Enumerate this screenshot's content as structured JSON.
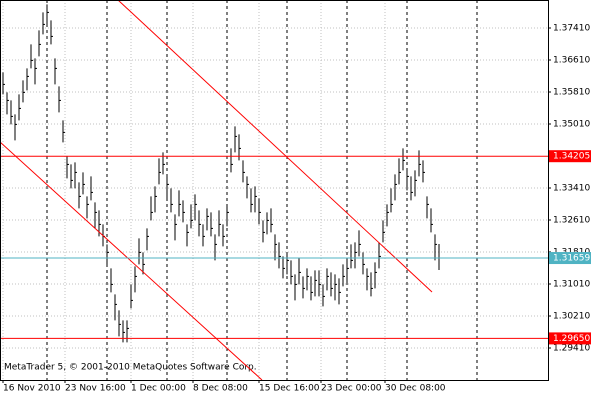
{
  "chart_data": {
    "type": "ohlc",
    "copyright": "MetaTrader 5, © 2001-2010 MetaQuotes Software Corp.",
    "color": "#000000",
    "grid": true,
    "xlim": [
      -0.75,
      136.25
    ],
    "ylim": [
      1.2861,
      1.3811
    ],
    "xticks": [
      {
        "value": 0,
        "label": "16 Nov 2010"
      },
      {
        "value": 15.5,
        "label": "23 Nov 16:00"
      },
      {
        "value": 32,
        "label": "1 Dec 00:00"
      },
      {
        "value": 47.5,
        "label": "8 Dec 08:00"
      },
      {
        "value": 64,
        "label": "15 Dec 16:00"
      },
      {
        "value": 79.5,
        "label": "23 Dec 00:00"
      },
      {
        "value": 95.5,
        "label": "30 Dec 08:00"
      }
    ],
    "yticks": [
      {
        "value": 1.3741,
        "label": "1.37410"
      },
      {
        "value": 1.3661,
        "label": "1.36610"
      },
      {
        "value": 1.3581,
        "label": "1.35810"
      },
      {
        "value": 1.3501,
        "label": "1.35010"
      },
      {
        "value": 1.3341,
        "label": "1.33410"
      },
      {
        "value": 1.3261,
        "label": "1.32610"
      },
      {
        "value": 1.3181,
        "label": "1.31810"
      },
      {
        "value": 1.3101,
        "label": "1.31010"
      },
      {
        "value": 1.3021,
        "label": "1.30210"
      },
      {
        "value": 1.2941,
        "label": "1.29410"
      }
    ],
    "separators": [
      11,
      26,
      41,
      56,
      71,
      86,
      101,
      118.5
    ],
    "levels": [
      {
        "price": 1.34205,
        "color": "#ff0000"
      },
      {
        "price": 1.2965,
        "label": "1.29650",
        "color": "#ff0000"
      },
      {
        "price": 1.31659,
        "color": "#4fb3c3"
      }
    ],
    "trendlines": [
      {
        "x1": 28.75,
        "y1": 1.3811,
        "x2": 107.25,
        "y2": 1.3081,
        "color": "#ff0000"
      },
      {
        "x1": -0.75,
        "y1": 1.3456,
        "x2": 64.75,
        "y2": 1.2861,
        "color": "#ff0000"
      }
    ],
    "close": [
      1.36,
      1.356,
      1.352,
      1.35,
      1.354,
      1.358,
      1.362,
      1.366,
      1.364,
      1.37,
      1.375,
      1.378,
      1.372,
      1.364,
      1.356,
      1.348,
      1.34,
      1.336,
      1.338,
      1.332,
      1.335,
      1.33,
      1.333,
      1.328,
      1.325,
      1.322,
      1.318,
      1.31,
      1.305,
      1.3,
      1.298,
      1.299,
      1.306,
      1.312,
      1.318,
      1.315,
      1.322,
      1.328,
      1.332,
      1.338,
      1.34,
      1.335,
      1.33,
      1.325,
      1.33,
      1.328,
      1.323,
      1.326,
      1.33,
      1.325,
      1.322,
      1.327,
      1.324,
      1.32,
      1.325,
      1.322,
      1.328,
      1.34,
      1.347,
      1.344,
      1.338,
      1.335,
      1.33,
      1.332,
      1.328,
      1.323,
      1.326,
      1.325,
      1.32,
      1.317,
      1.314,
      1.316,
      1.312,
      1.31,
      1.313,
      1.309,
      1.312,
      1.308,
      1.311,
      1.31,
      1.307,
      1.312,
      1.309,
      1.31,
      1.308,
      1.312,
      1.314,
      1.316,
      1.318,
      1.32,
      1.315,
      1.312,
      1.309,
      1.313,
      1.317,
      1.323,
      1.328,
      1.33,
      1.335,
      1.338,
      1.341,
      1.337,
      1.333,
      1.336,
      1.34,
      1.338,
      1.33,
      1.325,
      1.32,
      1.3166
    ],
    "high": [
      1.363,
      1.358,
      1.356,
      1.3525,
      1.3575,
      1.361,
      1.364,
      1.37,
      1.3665,
      1.3735,
      1.378,
      1.38,
      1.376,
      1.3665,
      1.3595,
      1.351,
      1.342,
      1.34,
      1.3405,
      1.3355,
      1.338,
      1.332,
      1.337,
      1.3305,
      1.3285,
      1.325,
      1.32,
      1.314,
      1.3075,
      1.3035,
      1.301,
      1.301,
      1.31,
      1.3145,
      1.3215,
      1.318,
      1.324,
      1.332,
      1.3345,
      1.3415,
      1.343,
      1.337,
      1.334,
      1.3275,
      1.3335,
      1.331,
      1.325,
      1.33,
      1.3325,
      1.3285,
      1.325,
      1.329,
      1.328,
      1.3225,
      1.3285,
      1.325,
      1.33,
      1.344,
      1.3495,
      1.3475,
      1.341,
      1.337,
      1.334,
      1.3345,
      1.3315,
      1.326,
      1.328,
      1.329,
      1.3225,
      1.3205,
      1.317,
      1.318,
      1.316,
      1.3125,
      1.3165,
      1.312,
      1.314,
      1.312,
      1.3135,
      1.3135,
      1.31,
      1.314,
      1.313,
      1.3125,
      1.3115,
      1.315,
      1.316,
      1.32,
      1.3205,
      1.3235,
      1.318,
      1.314,
      1.313,
      1.3155,
      1.3205,
      1.326,
      1.33,
      1.334,
      1.3375,
      1.3415,
      1.344,
      1.339,
      1.337,
      1.3385,
      1.3435,
      1.341,
      1.332,
      1.329,
      1.3225,
      1.3201
    ],
    "low": [
      1.3575,
      1.3525,
      1.35,
      1.346,
      1.351,
      1.3555,
      1.3585,
      1.364,
      1.36,
      1.367,
      1.3725,
      1.3745,
      1.37,
      1.36,
      1.353,
      1.3455,
      1.3365,
      1.334,
      1.334,
      1.329,
      1.3325,
      1.3265,
      1.331,
      1.324,
      1.322,
      1.3195,
      1.3145,
      1.308,
      1.301,
      1.297,
      1.2955,
      1.2955,
      1.304,
      1.308,
      1.315,
      1.3125,
      1.3185,
      1.326,
      1.328,
      1.335,
      1.3375,
      1.3315,
      1.328,
      1.321,
      1.327,
      1.3255,
      1.3195,
      1.324,
      1.326,
      1.322,
      1.3195,
      1.3235,
      1.322,
      1.316,
      1.322,
      1.3195,
      1.3245,
      1.338,
      1.343,
      1.341,
      1.3355,
      1.3315,
      1.328,
      1.328,
      1.325,
      1.3205,
      1.3225,
      1.323,
      1.316,
      1.314,
      1.3115,
      1.3125,
      1.31,
      1.306,
      1.31,
      1.3065,
      1.3085,
      1.306,
      1.307,
      1.307,
      1.3045,
      1.3085,
      1.307,
      1.306,
      1.305,
      1.3095,
      1.3105,
      1.314,
      1.314,
      1.317,
      1.3125,
      1.3085,
      1.307,
      1.309,
      1.314,
      1.3205,
      1.3245,
      1.328,
      1.331,
      1.335,
      1.3385,
      1.3335,
      1.331,
      1.332,
      1.337,
      1.3355,
      1.3265,
      1.323,
      1.316,
      1.3136
    ]
  }
}
